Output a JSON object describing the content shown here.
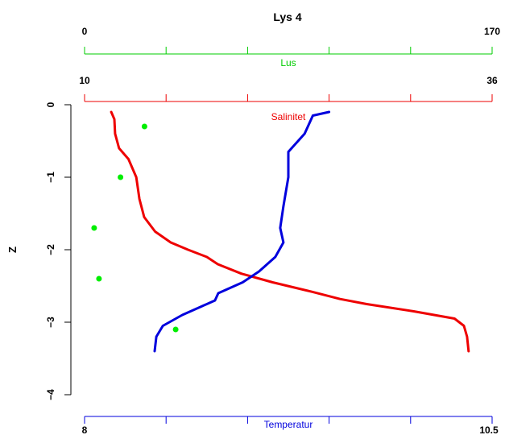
{
  "chart_data": {
    "type": "line",
    "title": "Lys 4",
    "ylabel": "Z",
    "ylim": [
      0,
      -4
    ],
    "y_ticks": [
      0,
      -1,
      -2,
      -3,
      -4
    ],
    "y_tick_labels": [
      "0",
      "−1",
      "−2",
      "−3",
      "−4"
    ],
    "grid": false,
    "axes": [
      {
        "key": "lus",
        "label": "Lus",
        "color": "#00cc00",
        "range": [
          0,
          170
        ],
        "end_labels": [
          "0",
          "170"
        ]
      },
      {
        "key": "salinitet",
        "label": "Salinitet",
        "color": "#ee0000",
        "range": [
          10,
          36
        ],
        "end_labels": [
          "10",
          "36"
        ]
      },
      {
        "key": "temperatur",
        "label": "Temperatur",
        "color": "#0000dd",
        "range": [
          8,
          10.5
        ],
        "end_labels": [
          "8",
          "10.5"
        ]
      }
    ],
    "series": [
      {
        "key": "salinitet",
        "type": "line",
        "axis": "salinitet",
        "color": "#ee0000",
        "points": [
          {
            "x": 11.7,
            "z": -0.1
          },
          {
            "x": 11.9,
            "z": -0.2
          },
          {
            "x": 11.95,
            "z": -0.4
          },
          {
            "x": 12.2,
            "z": -0.6
          },
          {
            "x": 12.8,
            "z": -0.75
          },
          {
            "x": 13.3,
            "z": -1.0
          },
          {
            "x": 13.5,
            "z": -1.3
          },
          {
            "x": 13.8,
            "z": -1.55
          },
          {
            "x": 14.5,
            "z": -1.75
          },
          {
            "x": 15.5,
            "z": -1.9
          },
          {
            "x": 16.6,
            "z": -2.0
          },
          {
            "x": 17.8,
            "z": -2.1
          },
          {
            "x": 18.5,
            "z": -2.2
          },
          {
            "x": 20.0,
            "z": -2.33
          },
          {
            "x": 22.0,
            "z": -2.45
          },
          {
            "x": 24.5,
            "z": -2.58
          },
          {
            "x": 26.3,
            "z": -2.68
          },
          {
            "x": 28.0,
            "z": -2.75
          },
          {
            "x": 31.0,
            "z": -2.85
          },
          {
            "x": 33.6,
            "z": -2.95
          },
          {
            "x": 34.2,
            "z": -3.05
          },
          {
            "x": 34.4,
            "z": -3.2
          },
          {
            "x": 34.5,
            "z": -3.4
          }
        ]
      },
      {
        "key": "temperatur",
        "type": "line",
        "axis": "temperatur",
        "color": "#0000dd",
        "points": [
          {
            "x": 9.5,
            "z": -0.1
          },
          {
            "x": 9.4,
            "z": -0.15
          },
          {
            "x": 9.35,
            "z": -0.4
          },
          {
            "x": 9.25,
            "z": -0.65
          },
          {
            "x": 9.25,
            "z": -1.0
          },
          {
            "x": 9.22,
            "z": -1.4
          },
          {
            "x": 9.2,
            "z": -1.7
          },
          {
            "x": 9.22,
            "z": -1.9
          },
          {
            "x": 9.17,
            "z": -2.1
          },
          {
            "x": 9.07,
            "z": -2.3
          },
          {
            "x": 8.97,
            "z": -2.45
          },
          {
            "x": 8.82,
            "z": -2.6
          },
          {
            "x": 8.8,
            "z": -2.7
          },
          {
            "x": 8.6,
            "z": -2.9
          },
          {
            "x": 8.48,
            "z": -3.05
          },
          {
            "x": 8.44,
            "z": -3.2
          },
          {
            "x": 8.43,
            "z": -3.4
          }
        ]
      },
      {
        "key": "lus",
        "type": "scatter",
        "axis": "lus",
        "color": "#00ee00",
        "points": [
          {
            "x": 25,
            "z": -0.3
          },
          {
            "x": 15,
            "z": -1.0
          },
          {
            "x": 4,
            "z": -1.7
          },
          {
            "x": 6,
            "z": -2.4
          },
          {
            "x": 38,
            "z": -3.1
          }
        ]
      }
    ]
  }
}
